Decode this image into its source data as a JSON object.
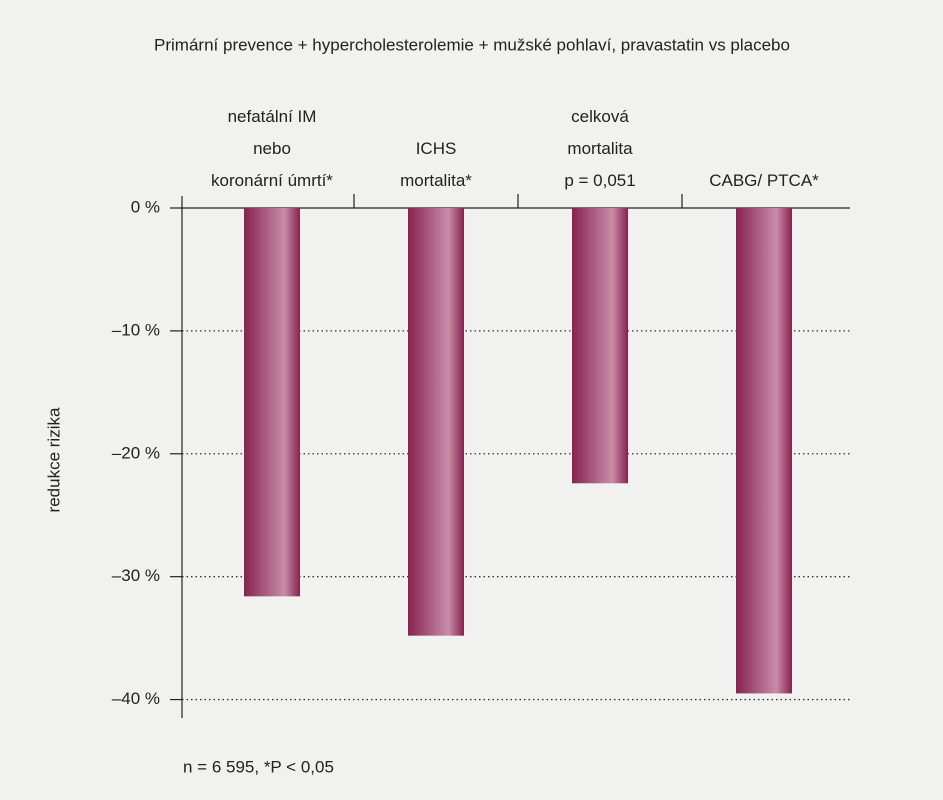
{
  "chart_data": {
    "type": "bar",
    "title": "Primární prevence + hypercholesterolemie + mužské pohlaví, pravastatin vs placebo",
    "categories": [
      "nefatální IM\nnebo\nkoronární úmrtí*",
      "ICHS\nmortalita*",
      "celková\nmortalita\np = 0,051",
      "CABG/ PTCA*"
    ],
    "values": [
      -31.6,
      -34.8,
      -22.4,
      -39.5
    ],
    "color": "#86234f",
    "ylabel": "redukce rizika",
    "ylim": [
      -41.5,
      0
    ],
    "yticks": [
      {
        "value": 0,
        "label": "0 %"
      },
      {
        "value": -10,
        "label": "–10 %"
      },
      {
        "value": -20,
        "label": "–20 %"
      },
      {
        "value": -30,
        "label": "–30 %"
      },
      {
        "value": -40,
        "label": "–40 %"
      }
    ],
    "grid": true,
    "footnote": "n = 6 595, *P < 0,05"
  }
}
